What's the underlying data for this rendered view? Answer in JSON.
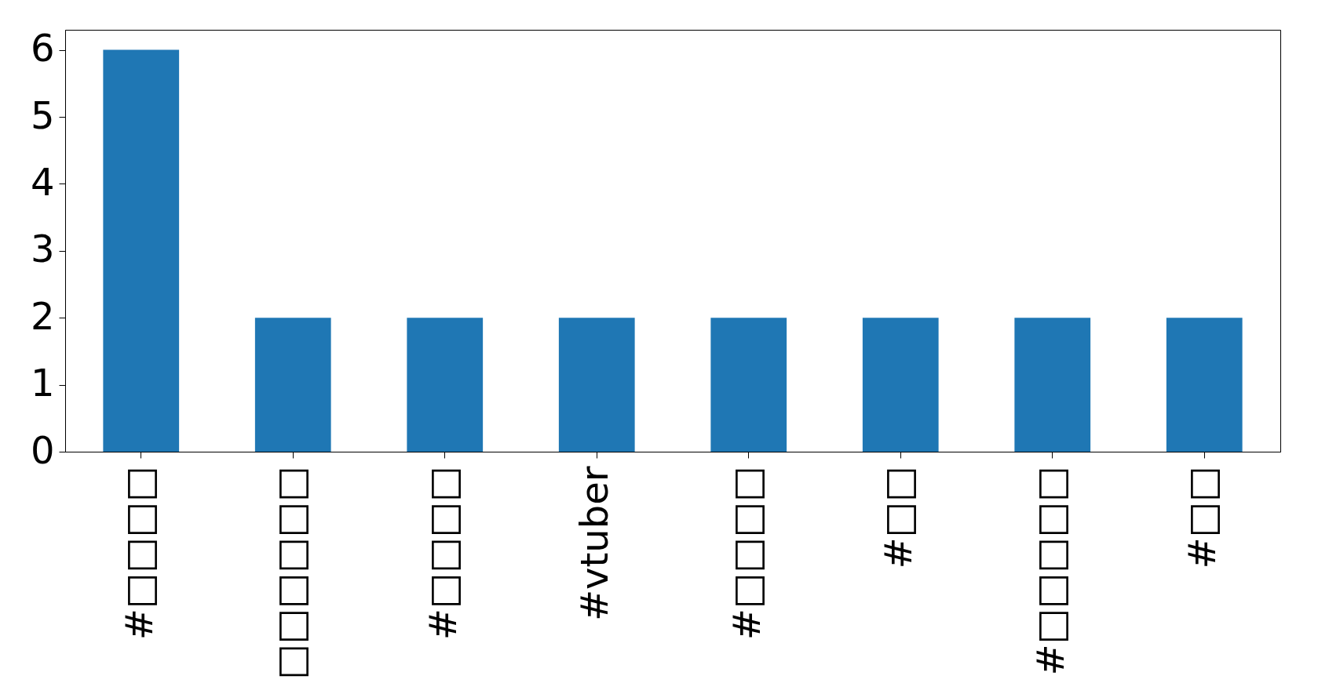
{
  "chart_data": {
    "type": "bar",
    "categories": [
      "#□□□□",
      "□□□□□□",
      "#□□□□",
      "#vtuber",
      "#□□□□",
      "#□□",
      "#□□□□□",
      "#□□"
    ],
    "values": [
      6,
      2,
      2,
      2,
      2,
      2,
      2,
      2
    ],
    "color": "#1f77b4",
    "ylim": [
      0,
      6.3
    ],
    "yticks": [
      0,
      1,
      2,
      3,
      4,
      5,
      6
    ],
    "grid": false
  }
}
